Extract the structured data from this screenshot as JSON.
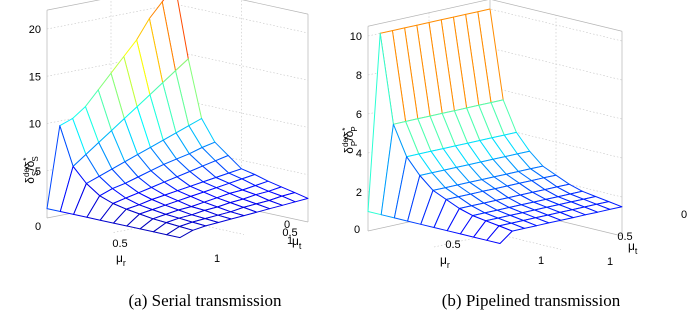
{
  "chart_data": [
    {
      "type": "surface",
      "caption": "(a) Serial transmission",
      "zlabel_main": "δ",
      "zlabel_sup1": "dec",
      "zlabel_sub1": "S",
      "zlabel_mid": "/δ",
      "zlabel_sup2": "*",
      "zlabel_sub2": "S",
      "xlabel_main": "μ",
      "xlabel_sub": "r",
      "ylabel_main": "μ",
      "ylabel_sub": "t",
      "x_ticks": [
        "0",
        "0.5",
        "1"
      ],
      "y_ticks": [
        "0",
        "0.5",
        "1"
      ],
      "z_ticks": [
        "5",
        "10",
        "15",
        "20"
      ],
      "xlim": [
        0,
        1
      ],
      "ylim": [
        0,
        1
      ],
      "zlim": [
        0,
        22
      ],
      "grid": true,
      "colormap": "jet",
      "x": [
        0,
        0.1,
        0.2,
        0.3,
        0.4,
        0.5,
        0.6,
        0.7,
        0.8,
        0.9,
        1.0
      ],
      "y": [
        0,
        0.1,
        0.2,
        0.3,
        0.4,
        0.5,
        0.6,
        0.7,
        0.8,
        0.9,
        1.0
      ],
      "z": [
        [
          1.0,
          9.5,
          10.0,
          11.0,
          12.5,
          14.0,
          15.5,
          17.0,
          19.0,
          20.5,
          22.0
        ],
        [
          1.0,
          5.5,
          6.5,
          7.5,
          8.5,
          9.5,
          10.5,
          11.5,
          12.5,
          13.5,
          14.5
        ],
        [
          1.0,
          4.0,
          4.5,
          5.0,
          5.5,
          6.0,
          6.5,
          7.0,
          7.5,
          8.0,
          8.5
        ],
        [
          1.0,
          3.0,
          3.5,
          3.8,
          4.2,
          4.6,
          5.0,
          5.3,
          5.6,
          6.0,
          6.3
        ],
        [
          1.0,
          2.5,
          2.8,
          3.1,
          3.4,
          3.7,
          4.0,
          4.3,
          4.6,
          4.9,
          5.2
        ],
        [
          1.0,
          2.2,
          2.4,
          2.7,
          2.9,
          3.1,
          3.3,
          3.5,
          3.7,
          3.9,
          4.1
        ],
        [
          1.0,
          2.0,
          2.2,
          2.4,
          2.6,
          2.8,
          3.0,
          3.2,
          3.4,
          3.6,
          3.8
        ],
        [
          1.0,
          1.8,
          2.0,
          2.2,
          2.3,
          2.5,
          2.7,
          2.9,
          3.0,
          3.2,
          3.4
        ],
        [
          1.0,
          1.7,
          1.9,
          2.0,
          2.2,
          2.3,
          2.5,
          2.6,
          2.8,
          2.9,
          3.1
        ],
        [
          1.0,
          1.6,
          1.8,
          1.9,
          2.0,
          2.1,
          2.3,
          2.4,
          2.5,
          2.7,
          2.8
        ],
        [
          1.0,
          1.5,
          1.7,
          1.8,
          1.9,
          2.0,
          2.1,
          2.2,
          2.3,
          2.4,
          2.5
        ]
      ]
    },
    {
      "type": "surface",
      "caption": "(b) Pipelined transmission",
      "zlabel_main": "δ",
      "zlabel_sup1": "dec",
      "zlabel_sub1": "P",
      "zlabel_mid": "/δ",
      "zlabel_sup2": "*",
      "zlabel_sub2": "P",
      "xlabel_main": "μ",
      "xlabel_sub": "r",
      "ylabel_main": "μ",
      "ylabel_sub": "t",
      "x_ticks": [
        "0",
        "0.5",
        "1"
      ],
      "y_ticks": [
        "0",
        "0.5",
        "1"
      ],
      "z_ticks": [
        "2",
        "4",
        "6",
        "8",
        "10"
      ],
      "xlim": [
        0,
        1
      ],
      "ylim": [
        0,
        1
      ],
      "zlim": [
        0,
        10.5
      ],
      "grid": true,
      "colormap": "jet",
      "x": [
        0,
        0.1,
        0.2,
        0.3,
        0.4,
        0.5,
        0.6,
        0.7,
        0.8,
        0.9,
        1.0
      ],
      "y": [
        0,
        0.1,
        0.2,
        0.3,
        0.4,
        0.5,
        0.6,
        0.7,
        0.8,
        0.9,
        1.0
      ],
      "z": [
        [
          1.0,
          10.0,
          10.0,
          10.0,
          10.0,
          10.0,
          10.0,
          10.0,
          10.0,
          10.0,
          10.0
        ],
        [
          1.0,
          5.5,
          5.5,
          5.5,
          5.5,
          5.5,
          5.5,
          5.5,
          5.5,
          5.5,
          5.5
        ],
        [
          1.0,
          4.0,
          4.0,
          4.0,
          4.0,
          4.0,
          4.0,
          4.0,
          4.0,
          4.0,
          4.0
        ],
        [
          1.0,
          3.2,
          3.2,
          3.2,
          3.2,
          3.2,
          3.2,
          3.2,
          3.2,
          3.2,
          3.2
        ],
        [
          1.0,
          2.6,
          2.6,
          2.6,
          2.6,
          2.6,
          2.6,
          2.6,
          2.6,
          2.6,
          2.6
        ],
        [
          1.0,
          2.3,
          2.3,
          2.3,
          2.3,
          2.3,
          2.3,
          2.3,
          2.3,
          2.3,
          2.3
        ],
        [
          1.0,
          2.0,
          2.0,
          2.0,
          2.0,
          2.0,
          2.0,
          2.0,
          2.0,
          2.0,
          2.0
        ],
        [
          1.0,
          1.8,
          1.8,
          1.8,
          1.8,
          1.8,
          1.8,
          1.8,
          1.8,
          1.8,
          1.8
        ],
        [
          1.0,
          1.7,
          1.7,
          1.7,
          1.7,
          1.7,
          1.7,
          1.7,
          1.7,
          1.7,
          1.7
        ],
        [
          1.0,
          1.6,
          1.6,
          1.6,
          1.6,
          1.6,
          1.6,
          1.6,
          1.6,
          1.6,
          1.6
        ],
        [
          1.0,
          1.5,
          1.5,
          1.5,
          1.5,
          1.5,
          1.5,
          1.5,
          1.5,
          1.5,
          1.5
        ]
      ]
    }
  ]
}
